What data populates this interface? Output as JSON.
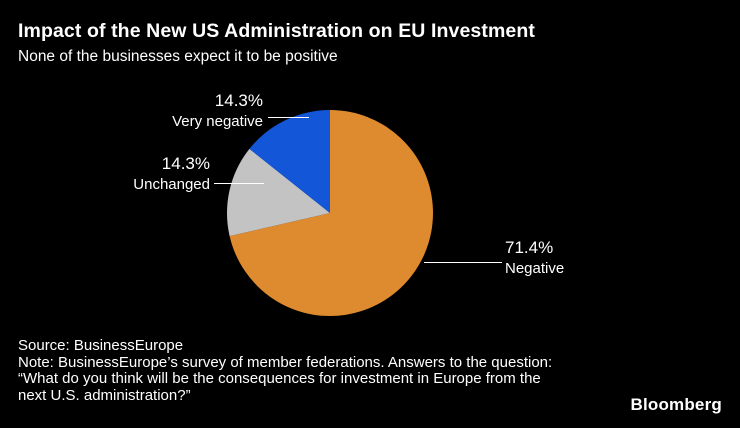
{
  "header": {
    "title": "Impact of the New US Administration on EU Investment",
    "subtitle": "None of the businesses expect it to be positive"
  },
  "chart_data": {
    "type": "pie",
    "title": "Impact of the New US Administration on EU Investment",
    "subtitle": "None of the businesses expect it to be positive",
    "start_angle_deg": 0,
    "direction": "clockwise",
    "legend_position": "callout-labels",
    "slices": [
      {
        "label": "Negative",
        "value": 71.4,
        "display": "71.4%",
        "color": "#DE8A2F"
      },
      {
        "label": "Unchanged",
        "value": 14.3,
        "display": "14.3%",
        "color": "#C3C3C3"
      },
      {
        "label": "Very negative",
        "value": 14.3,
        "display": "14.3%",
        "color": "#1356D8"
      }
    ]
  },
  "footer": {
    "source": "Source: BusinessEurope",
    "note": "Note: BusinessEurope’s survey of member federations. Answers to the question: “What do you think will be the consequences for investment in Europe from the next U.S. administration?”"
  },
  "branding": {
    "logo": "Bloomberg"
  },
  "colors": {
    "background": "#000000",
    "text": "#FFFFFF",
    "negative_slice": "#DE8A2F",
    "unchanged_slice": "#C3C3C3",
    "very_negative_slice": "#1356D8"
  }
}
